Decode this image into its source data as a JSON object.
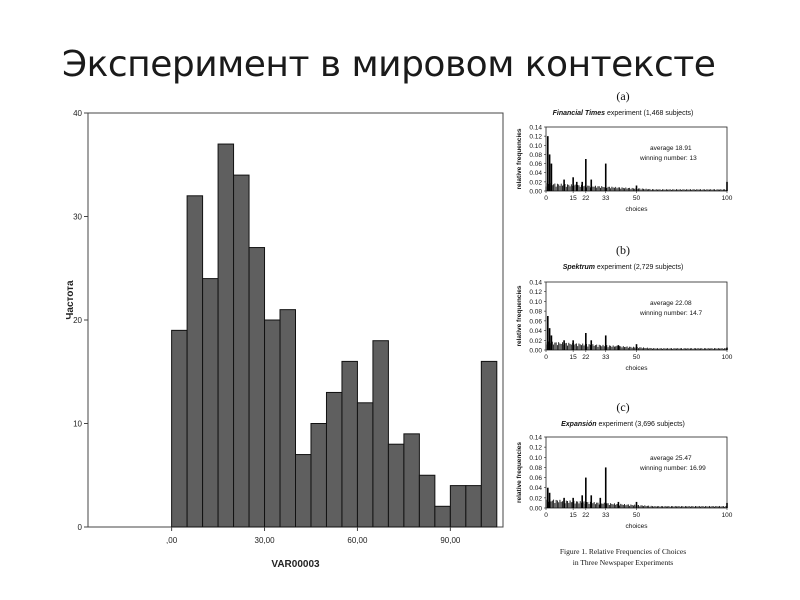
{
  "slide": {
    "title": "Эксперимент в мировом контексте"
  },
  "chart_data": [
    {
      "type": "bar",
      "title": "",
      "xlabel": "VAR00003",
      "ylabel": "Частота",
      "bin_width": 5,
      "x_first_bin_start": 0,
      "x_ticks": [
        0,
        30,
        60,
        90
      ],
      "x_tick_labels": [
        ",00",
        "30,00",
        "60,00",
        "90,00"
      ],
      "y_ticks": [
        0,
        10,
        20,
        30,
        40
      ],
      "y_tick_labels": [
        "0",
        "10",
        "20",
        "30",
        "40"
      ],
      "xlim": [
        -27,
        107
      ],
      "ylim": [
        0,
        40
      ],
      "values": [
        19,
        32,
        24,
        37,
        34,
        27,
        20,
        21,
        7,
        10,
        13,
        16,
        12,
        18,
        8,
        9,
        5,
        2,
        4,
        4,
        16
      ],
      "bar_color": "#5f5f5f"
    },
    {
      "type": "bar",
      "panel_label": "(a)",
      "title": "Financial Times experiment (1,468 subjects)",
      "title_italic_part": "Financial Times",
      "title_rest": " experiment (1,468 subjects)",
      "ylabel": "relative frequencies",
      "xlabel": "choices",
      "y_tick_labels": [
        "0.14",
        "0.12",
        "0.10",
        "0.08",
        "0.06",
        "0.04",
        "0.02",
        "0.00"
      ],
      "ylim": [
        0,
        0.14
      ],
      "x_ticks": [
        0,
        15,
        22,
        33,
        50,
        100
      ],
      "xlim": [
        0,
        100
      ],
      "annotation": [
        "average 18.91",
        "winning number: 13"
      ],
      "spikes": [
        [
          1,
          0.12
        ],
        [
          2,
          0.08
        ],
        [
          3,
          0.06
        ],
        [
          10,
          0.025
        ],
        [
          15,
          0.03
        ],
        [
          17,
          0.02
        ],
        [
          20,
          0.02
        ],
        [
          22,
          0.07
        ],
        [
          25,
          0.025
        ],
        [
          33,
          0.06
        ],
        [
          50,
          0.012
        ],
        [
          100,
          0.02
        ]
      ]
    },
    {
      "type": "bar",
      "panel_label": "(b)",
      "title": "Spektrum experiment (2,729 subjects)",
      "title_italic_part": "Spektrum",
      "title_rest": " experiment (2,729 subjects)",
      "ylabel": "relative frequencies",
      "xlabel": "choices",
      "y_tick_labels": [
        "0.14",
        "0.12",
        "0.10",
        "0.08",
        "0.06",
        "0.04",
        "0.02",
        "0.00"
      ],
      "ylim": [
        0,
        0.14
      ],
      "x_ticks": [
        0,
        15,
        22,
        33,
        50,
        100
      ],
      "xlim": [
        0,
        100
      ],
      "annotation": [
        "average 22.08",
        "winning number: 14.7"
      ],
      "spikes": [
        [
          1,
          0.07
        ],
        [
          2,
          0.045
        ],
        [
          3,
          0.03
        ],
        [
          10,
          0.02
        ],
        [
          15,
          0.02
        ],
        [
          22,
          0.035
        ],
        [
          25,
          0.02
        ],
        [
          33,
          0.03
        ],
        [
          40,
          0.01
        ],
        [
          50,
          0.012
        ],
        [
          100,
          0.005
        ]
      ]
    },
    {
      "type": "bar",
      "panel_label": "(c)",
      "title": "Expansión experiment (3,696 subjects)",
      "title_italic_part": "Expansión",
      "title_rest": " experiment (3,696 subjects)",
      "ylabel": "relative frequencies",
      "xlabel": "choices",
      "y_tick_labels": [
        "0.14",
        "0.12",
        "0.10",
        "0.08",
        "0.06",
        "0.04",
        "0.02",
        "0.00"
      ],
      "ylim": [
        0,
        0.14
      ],
      "x_ticks": [
        0,
        15,
        22,
        33,
        50,
        100
      ],
      "xlim": [
        0,
        100
      ],
      "annotation": [
        "average 25.47",
        "winning number: 16.99"
      ],
      "spikes": [
        [
          1,
          0.04
        ],
        [
          2,
          0.03
        ],
        [
          10,
          0.02
        ],
        [
          15,
          0.02
        ],
        [
          20,
          0.025
        ],
        [
          22,
          0.06
        ],
        [
          25,
          0.025
        ],
        [
          30,
          0.02
        ],
        [
          33,
          0.08
        ],
        [
          40,
          0.012
        ],
        [
          50,
          0.012
        ],
        [
          100,
          0.01
        ]
      ]
    }
  ],
  "figure_caption": [
    "Figure 1. Relative Frequencies of Choices",
    "in Three Newspaper Experiments"
  ]
}
